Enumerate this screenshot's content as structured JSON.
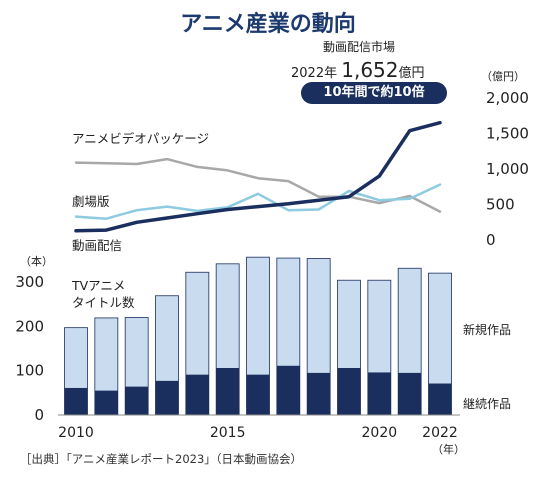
{
  "title": "アニメ産業の動向",
  "market": {
    "label": "動画配信市場",
    "year": "2022年",
    "value": "1,652",
    "unit": "億円",
    "badge": "10年間で約10倍"
  },
  "source": "［出典］「アニメ産業レポート2023」（日本動画協会）",
  "colors": {
    "navy": "#1b2f5e",
    "light_blue": "#c9dcef",
    "cyan_line": "#8ecbe0",
    "gray_line": "#a8a8a8",
    "title": "#1d3a6e"
  },
  "chart_data": [
    {
      "type": "line",
      "x": [
        2010,
        2011,
        2012,
        2013,
        2014,
        2015,
        2016,
        2017,
        2018,
        2019,
        2020,
        2021,
        2022
      ],
      "y_unit": "（億円）",
      "ylim": [
        0,
        2000
      ],
      "y_ticks": [
        "0",
        "500",
        "1,000",
        "1,500",
        "2,000"
      ],
      "series": [
        {
          "name": "アニメビデオパッケージ",
          "color": "#a8a8a8",
          "values": [
            1090,
            1080,
            1070,
            1140,
            1030,
            980,
            870,
            830,
            610,
            610,
            520,
            620,
            400
          ]
        },
        {
          "name": "劇場版",
          "color": "#8ecbe0",
          "values": [
            330,
            300,
            420,
            470,
            410,
            460,
            650,
            420,
            430,
            690,
            560,
            580,
            780
          ]
        },
        {
          "name": "動画配信",
          "color": "#1b2f5e",
          "values": [
            130,
            140,
            250,
            310,
            370,
            430,
            470,
            510,
            560,
            610,
            900,
            1540,
            1652
          ]
        }
      ]
    },
    {
      "type": "bar",
      "stacked": true,
      "x": [
        2010,
        2011,
        2012,
        2013,
        2014,
        2015,
        2016,
        2017,
        2018,
        2019,
        2020,
        2021,
        2022
      ],
      "x_tick_labels": [
        "2010",
        "2015",
        "2020",
        "2022"
      ],
      "x_unit": "（年）",
      "y_unit": "（本）",
      "ylabel": "TVアニメ\nタイトル数",
      "ylim": [
        0,
        350
      ],
      "y_ticks": [
        "0",
        "100",
        "200",
        "300"
      ],
      "series": [
        {
          "name": "継続作品",
          "color": "#1b2f5e",
          "values": [
            61,
            55,
            64,
            77,
            91,
            106,
            91,
            111,
            95,
            106,
            96,
            95,
            71
          ]
        },
        {
          "name": "新規作品",
          "color": "#c9dcef",
          "values": [
            136,
            164,
            156,
            192,
            231,
            235,
            265,
            243,
            258,
            198,
            208,
            236,
            249
          ]
        }
      ]
    }
  ]
}
